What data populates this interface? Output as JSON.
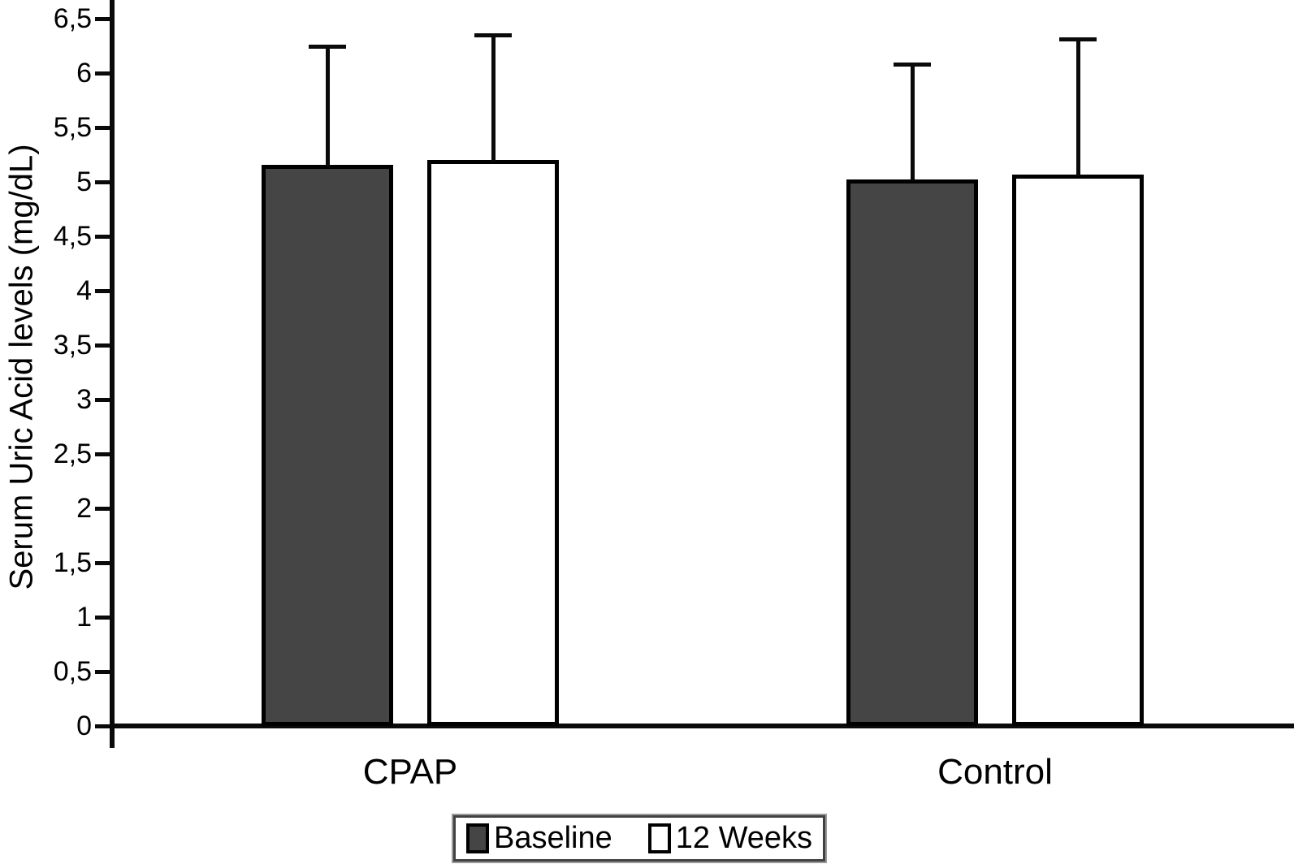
{
  "chart_data": {
    "type": "bar",
    "title": "",
    "ylabel": "Serum Uric Acid levels (mg/dL)",
    "xlabel": "",
    "ylim": [
      0,
      6.5
    ],
    "ytick_step": 0.5,
    "ytick_labels": [
      "0",
      "0,5",
      "1",
      "1,5",
      "2",
      "2,5",
      "3",
      "3,5",
      "4",
      "4,5",
      "5",
      "5,5",
      "6",
      "6,5"
    ],
    "decimal_separator": ",",
    "grid": false,
    "categories": [
      "CPAP",
      "Control"
    ],
    "series": [
      {
        "name": "Baseline",
        "fill": "#454545",
        "stroke": "#000000",
        "values": [
          5.16,
          5.02
        ],
        "error_plus": [
          1.09,
          1.06
        ]
      },
      {
        "name": "12 Weeks",
        "fill": "#ffffff",
        "stroke": "#000000",
        "values": [
          5.2,
          5.07
        ],
        "error_plus": [
          1.15,
          1.24
        ]
      }
    ],
    "error_bars": "upper-only",
    "legend_position": "bottom-center",
    "colors": {
      "axis": "#0a0a0a",
      "bar_dark": "#454545",
      "bar_light": "#ffffff",
      "background": "#ffffff"
    }
  }
}
